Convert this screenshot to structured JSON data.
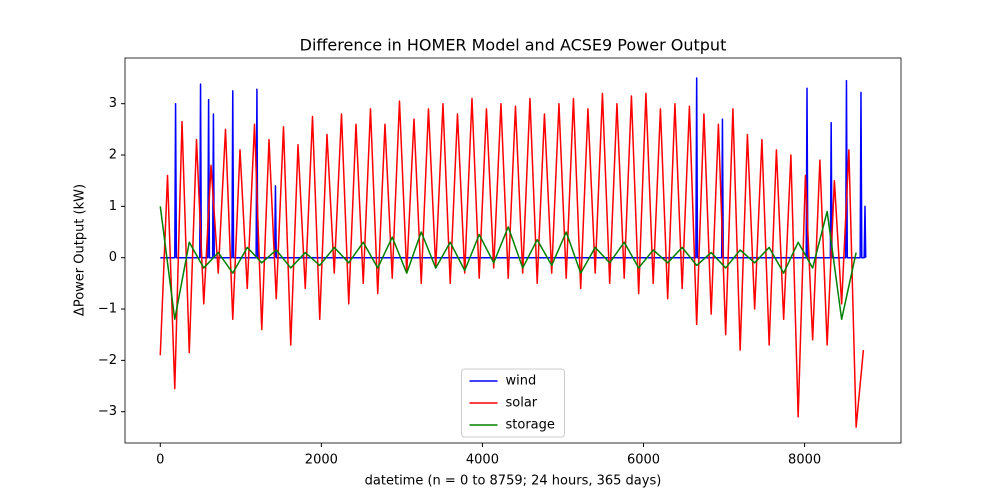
{
  "chart_data": {
    "type": "line",
    "title": "Difference in HOMER Model and ACSE9 Power Output",
    "xlabel": "datetime (n = 0 to 8759; 24 hours, 365 days)",
    "ylabel": "ΔPower Output (kW)",
    "xlim": [
      -438,
      9197
    ],
    "ylim": [
      -3.61,
      3.89
    ],
    "xticks": [
      0,
      2000,
      4000,
      6000,
      8000
    ],
    "yticks": [
      {
        "value": -3,
        "label": "−3"
      },
      {
        "value": -2,
        "label": "−2"
      },
      {
        "value": -1,
        "label": "−1"
      },
      0,
      1,
      2,
      3
    ],
    "legend": "lower center",
    "series": [
      {
        "name": "wind",
        "color": "#0000ff",
        "x": [
          0,
          180,
          190,
          200,
          490,
          500,
          510,
          590,
          600,
          610,
          650,
          660,
          670,
          890,
          900,
          910,
          1190,
          1200,
          1210,
          1420,
          1430,
          1440,
          6650,
          6660,
          6670,
          6970,
          6980,
          6990,
          8020,
          8030,
          8040,
          8320,
          8330,
          8340,
          8510,
          8520,
          8530,
          8690,
          8700,
          8710,
          8740,
          8750,
          8759
        ],
        "values": [
          0,
          0,
          3.0,
          0,
          0,
          3.38,
          0,
          0,
          3.08,
          0,
          0,
          2.8,
          0,
          0,
          3.25,
          0,
          0,
          3.28,
          0,
          0,
          1.4,
          0,
          0,
          3.5,
          0,
          0,
          2.7,
          0,
          0,
          3.3,
          0,
          0,
          2.63,
          0,
          0,
          3.45,
          0,
          0,
          3.22,
          0,
          0,
          1.0,
          0
        ]
      },
      {
        "name": "solar",
        "color": "#ff0000",
        "x": [
          0,
          90,
          180,
          270,
          360,
          450,
          540,
          630,
          720,
          810,
          900,
          990,
          1080,
          1170,
          1260,
          1350,
          1440,
          1530,
          1620,
          1710,
          1800,
          1890,
          1980,
          2070,
          2160,
          2250,
          2340,
          2430,
          2520,
          2610,
          2700,
          2790,
          2880,
          2970,
          3060,
          3150,
          3240,
          3330,
          3420,
          3510,
          3600,
          3690,
          3780,
          3870,
          3960,
          4050,
          4140,
          4230,
          4320,
          4410,
          4500,
          4590,
          4680,
          4770,
          4860,
          4950,
          5040,
          5130,
          5220,
          5310,
          5400,
          5490,
          5580,
          5670,
          5760,
          5850,
          5940,
          6030,
          6120,
          6210,
          6300,
          6390,
          6480,
          6570,
          6660,
          6750,
          6840,
          6930,
          7020,
          7110,
          7200,
          7290,
          7380,
          7470,
          7560,
          7650,
          7740,
          7830,
          7920,
          8010,
          8100,
          8190,
          8280,
          8370,
          8460,
          8550,
          8640,
          8730
        ],
        "values": [
          -1.9,
          1.6,
          -2.55,
          2.65,
          -1.85,
          2.3,
          -0.9,
          1.8,
          -0.3,
          2.5,
          -1.2,
          2.1,
          -0.6,
          2.6,
          -1.4,
          2.3,
          -0.8,
          2.55,
          -1.7,
          2.2,
          -0.6,
          2.75,
          -1.2,
          2.4,
          -0.3,
          2.8,
          -0.9,
          2.6,
          -0.5,
          2.9,
          -0.7,
          2.6,
          -0.4,
          3.05,
          -0.3,
          2.7,
          -0.5,
          2.9,
          -0.2,
          3.0,
          -0.5,
          2.8,
          -0.3,
          3.1,
          -0.4,
          2.9,
          -0.2,
          3.0,
          -0.4,
          2.95,
          -0.3,
          3.1,
          -0.5,
          2.8,
          -0.3,
          3.0,
          -0.4,
          3.1,
          -0.6,
          2.9,
          -0.3,
          3.2,
          -0.5,
          3.0,
          -0.4,
          3.15,
          -0.7,
          3.2,
          -0.5,
          2.9,
          -0.8,
          3.0,
          -0.6,
          2.95,
          -1.3,
          2.8,
          -1.1,
          2.6,
          -1.5,
          2.9,
          -1.8,
          2.4,
          -1.0,
          2.3,
          -1.7,
          2.1,
          -1.2,
          2.0,
          -3.1,
          1.6,
          -1.6,
          1.9,
          -1.7,
          1.5,
          -0.9,
          2.1,
          -3.3,
          -1.8
        ]
      },
      {
        "name": "storage",
        "color": "#008000",
        "x": [
          0,
          180,
          360,
          540,
          720,
          900,
          1080,
          1260,
          1440,
          1620,
          1800,
          1980,
          2160,
          2340,
          2520,
          2700,
          2880,
          3060,
          3240,
          3420,
          3600,
          3780,
          3960,
          4140,
          4320,
          4500,
          4680,
          4860,
          5040,
          5220,
          5400,
          5580,
          5760,
          5940,
          6120,
          6300,
          6480,
          6660,
          6840,
          7020,
          7200,
          7380,
          7560,
          7740,
          7920,
          8100,
          8280,
          8460,
          8640
        ],
        "values": [
          1.0,
          -1.2,
          0.3,
          -0.2,
          0.1,
          -0.3,
          0.2,
          -0.1,
          0.15,
          -0.2,
          0.1,
          -0.15,
          0.2,
          -0.1,
          0.3,
          -0.2,
          0.4,
          -0.3,
          0.5,
          -0.2,
          0.3,
          -0.25,
          0.45,
          -0.1,
          0.6,
          -0.2,
          0.35,
          -0.15,
          0.5,
          -0.3,
          0.2,
          -0.1,
          0.3,
          -0.2,
          0.15,
          -0.1,
          0.2,
          -0.15,
          0.1,
          -0.2,
          0.15,
          -0.1,
          0.2,
          -0.3,
          0.3,
          -0.2,
          0.9,
          -1.2,
          0.1
        ]
      }
    ]
  }
}
